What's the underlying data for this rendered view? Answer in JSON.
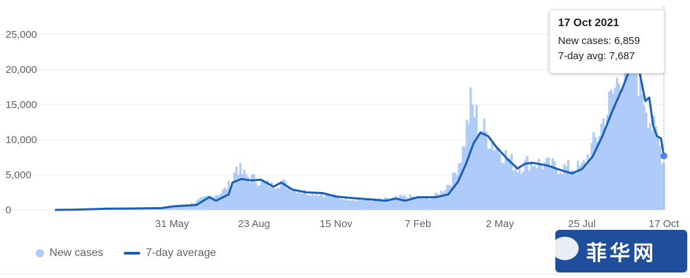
{
  "tooltip": {
    "date": "17 Oct 2021",
    "new_cases_label": "New cases:",
    "new_cases_value": "6,859",
    "avg_label": "7-day avg:",
    "avg_value": "7,687"
  },
  "legend": {
    "new_cases": "New cases",
    "avg": "7-day average"
  },
  "watermark": {
    "text": "菲华网",
    "icon": "chat-bubble-icon"
  },
  "colors": {
    "bars": "#aecbfa",
    "line": "#1a5fb4",
    "grid": "#e8eaed"
  },
  "chart_data": {
    "type": "area",
    "title": "",
    "xlabel": "",
    "ylabel": "",
    "ylim": [
      0,
      25000
    ],
    "y_ticks": [
      0,
      5000,
      10000,
      15000,
      20000,
      25000
    ],
    "y_tick_labels": [
      "0",
      "5,000",
      "10,000",
      "15,000",
      "20,000",
      "25,000"
    ],
    "x_ticks": [
      "2020-05-31",
      "2020-08-23",
      "2020-11-15",
      "2021-02-07",
      "2021-05-02",
      "2021-07-25",
      "2021-10-17"
    ],
    "x_tick_labels": [
      "31 May",
      "23 Aug",
      "15 Nov",
      "7 Feb",
      "2 May",
      "25 Jul",
      "17 Oct"
    ],
    "x_range": [
      "2020-02-01",
      "2021-10-17"
    ],
    "grid": true,
    "legend_position": "bottom-left",
    "series": [
      {
        "name": "New cases",
        "style": "bars",
        "points": [
          [
            "2020-02-01",
            0
          ],
          [
            "2020-03-15",
            150
          ],
          [
            "2020-04-15",
            200
          ],
          [
            "2020-05-15",
            300
          ],
          [
            "2020-06-01",
            550
          ],
          [
            "2020-06-20",
            900
          ],
          [
            "2020-07-05",
            1800
          ],
          [
            "2020-07-20",
            2400
          ],
          [
            "2020-08-01",
            4000
          ],
          [
            "2020-08-05",
            6300
          ],
          [
            "2020-08-12",
            5000
          ],
          [
            "2020-08-25",
            4300
          ],
          [
            "2020-09-10",
            3500
          ],
          [
            "2020-09-20",
            4000
          ],
          [
            "2020-10-10",
            2600
          ],
          [
            "2020-11-01",
            2300
          ],
          [
            "2020-11-20",
            1700
          ],
          [
            "2020-12-15",
            1400
          ],
          [
            "2021-01-05",
            1500
          ],
          [
            "2021-01-25",
            1900
          ],
          [
            "2021-02-15",
            1700
          ],
          [
            "2021-03-01",
            2200
          ],
          [
            "2021-03-15",
            4500
          ],
          [
            "2021-03-25",
            8500
          ],
          [
            "2021-04-02",
            15000
          ],
          [
            "2021-04-12",
            12000
          ],
          [
            "2021-04-25",
            9500
          ],
          [
            "2021-05-10",
            7500
          ],
          [
            "2021-05-20",
            6000
          ],
          [
            "2021-06-01",
            6900
          ],
          [
            "2021-06-15",
            6500
          ],
          [
            "2021-07-05",
            6000
          ],
          [
            "2021-07-25",
            6000
          ],
          [
            "2021-08-10",
            10500
          ],
          [
            "2021-08-25",
            16000
          ],
          [
            "2021-09-05",
            20500
          ],
          [
            "2021-09-12",
            22000
          ],
          [
            "2021-09-20",
            20000
          ],
          [
            "2021-09-28",
            16000
          ],
          [
            "2021-10-05",
            12000
          ],
          [
            "2021-10-12",
            9500
          ],
          [
            "2021-10-17",
            6859
          ]
        ]
      },
      {
        "name": "7-day average",
        "style": "line",
        "points": [
          [
            "2020-02-01",
            0
          ],
          [
            "2020-02-20",
            30
          ],
          [
            "2020-03-10",
            100
          ],
          [
            "2020-03-25",
            180
          ],
          [
            "2020-04-20",
            200
          ],
          [
            "2020-05-20",
            250
          ],
          [
            "2020-06-01",
            500
          ],
          [
            "2020-06-25",
            700
          ],
          [
            "2020-07-08",
            1800
          ],
          [
            "2020-07-15",
            1300
          ],
          [
            "2020-07-28",
            2200
          ],
          [
            "2020-08-01",
            3900
          ],
          [
            "2020-08-10",
            4400
          ],
          [
            "2020-08-20",
            4200
          ],
          [
            "2020-08-30",
            4300
          ],
          [
            "2020-09-12",
            3300
          ],
          [
            "2020-09-20",
            3900
          ],
          [
            "2020-10-01",
            2900
          ],
          [
            "2020-10-15",
            2500
          ],
          [
            "2020-11-01",
            2400
          ],
          [
            "2020-11-15",
            1900
          ],
          [
            "2020-12-01",
            1700
          ],
          [
            "2020-12-20",
            1500
          ],
          [
            "2021-01-05",
            1300
          ],
          [
            "2021-01-15",
            1600
          ],
          [
            "2021-01-25",
            1300
          ],
          [
            "2021-02-07",
            1800
          ],
          [
            "2021-02-25",
            1800
          ],
          [
            "2021-03-10",
            2200
          ],
          [
            "2021-03-20",
            4000
          ],
          [
            "2021-03-28",
            6500
          ],
          [
            "2021-04-05",
            9500
          ],
          [
            "2021-04-12",
            11000
          ],
          [
            "2021-04-20",
            10500
          ],
          [
            "2021-04-28",
            9000
          ],
          [
            "2021-05-10",
            7200
          ],
          [
            "2021-05-20",
            5900
          ],
          [
            "2021-05-28",
            6600
          ],
          [
            "2021-06-05",
            6700
          ],
          [
            "2021-06-20",
            6300
          ],
          [
            "2021-07-05",
            5600
          ],
          [
            "2021-07-15",
            5200
          ],
          [
            "2021-07-25",
            5800
          ],
          [
            "2021-08-05",
            7600
          ],
          [
            "2021-08-15",
            10500
          ],
          [
            "2021-08-25",
            14000
          ],
          [
            "2021-09-05",
            17500
          ],
          [
            "2021-09-12",
            20000
          ],
          [
            "2021-09-20",
            21000
          ],
          [
            "2021-09-28",
            15500
          ],
          [
            "2021-10-02",
            16000
          ],
          [
            "2021-10-06",
            12000
          ],
          [
            "2021-10-10",
            10500
          ],
          [
            "2021-10-14",
            10200
          ],
          [
            "2021-10-17",
            7687
          ]
        ]
      }
    ],
    "highlight": {
      "date": "2021-10-17",
      "new_cases": 6859,
      "avg": 7687
    }
  }
}
